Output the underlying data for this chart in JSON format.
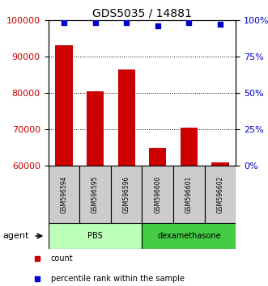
{
  "title": "GDS5035 / 14881",
  "samples": [
    "GSM596594",
    "GSM596595",
    "GSM596596",
    "GSM596600",
    "GSM596601",
    "GSM596602"
  ],
  "counts": [
    93000,
    80500,
    86500,
    65000,
    70500,
    61000
  ],
  "percentile_ranks": [
    98,
    98,
    98,
    96,
    98,
    97
  ],
  "ylim_left": [
    60000,
    100000
  ],
  "ylim_right": [
    0,
    100
  ],
  "yticks_left": [
    60000,
    70000,
    80000,
    90000,
    100000
  ],
  "yticks_right": [
    0,
    25,
    50,
    75,
    100
  ],
  "bar_color": "#cc0000",
  "dot_color": "#0000cc",
  "groups": [
    {
      "label": "PBS",
      "indices": [
        0,
        1,
        2
      ],
      "color": "#bbffbb"
    },
    {
      "label": "dexamethasone",
      "indices": [
        3,
        4,
        5
      ],
      "color": "#44cc44"
    }
  ],
  "agent_label": "agent",
  "legend_items": [
    {
      "label": "count",
      "color": "#cc0000"
    },
    {
      "label": "percentile rank within the sample",
      "color": "#0000cc"
    }
  ],
  "bar_width": 0.55,
  "sample_box_color": "#cccccc",
  "title_fontsize": 10,
  "tick_fontsize": 8,
  "label_fontsize": 7,
  "legend_fontsize": 7
}
